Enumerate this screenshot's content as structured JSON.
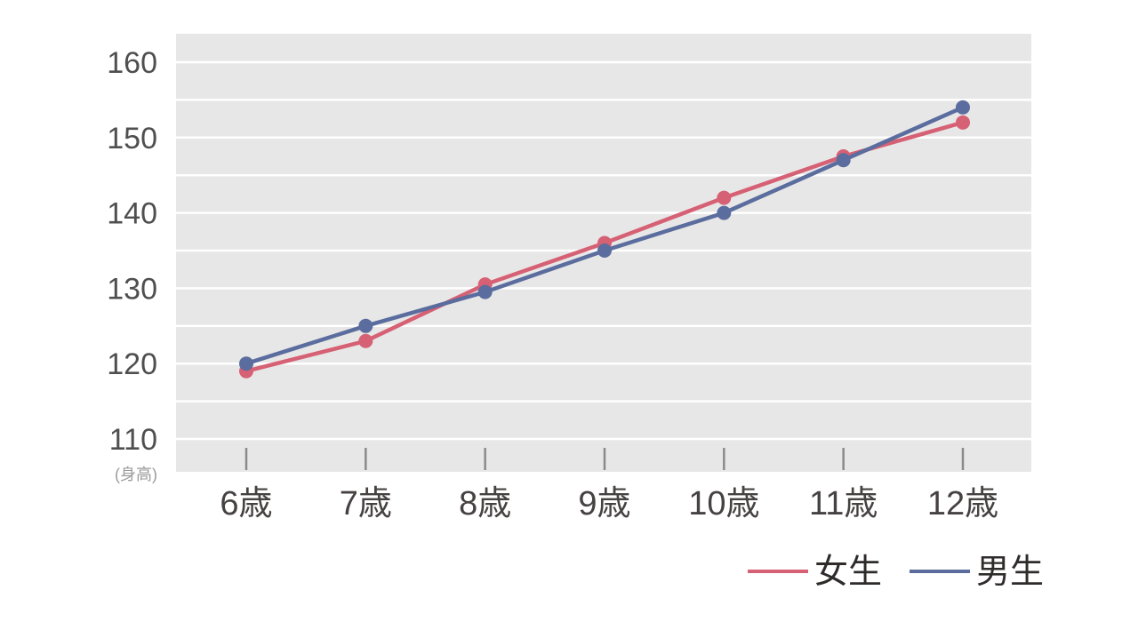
{
  "chart_data": {
    "type": "line",
    "categories": [
      "6歳",
      "7歳",
      "8歳",
      "9歳",
      "10歳",
      "11歳",
      "12歳"
    ],
    "series": [
      {
        "name": "女生",
        "color": "#d66074",
        "values": [
          119,
          123,
          130.5,
          136,
          142,
          147.5,
          152
        ]
      },
      {
        "name": "男生",
        "color": "#5a6d9e",
        "values": [
          120,
          125,
          129.5,
          135,
          140,
          147,
          154
        ]
      }
    ],
    "y_axis": {
      "min": 110,
      "max": 160,
      "grid_step": 5,
      "label_step": 10,
      "tick_labels": [
        "110",
        "120",
        "130",
        "140",
        "150",
        "160"
      ],
      "unit_label": "(身高)"
    },
    "legend": {
      "position": "bottom-right",
      "items": [
        "女生",
        "男生"
      ]
    },
    "grid": true
  },
  "colors": {
    "plot_background": "#e8e7e7",
    "gridline": "#ffffff",
    "tick_mark": "#8a8a8a",
    "y_label_text": "#4f4f4f",
    "x_label_text": "#474242",
    "unit_label_text": "#9b9b9b",
    "legend_text": "#2f2b2b"
  }
}
